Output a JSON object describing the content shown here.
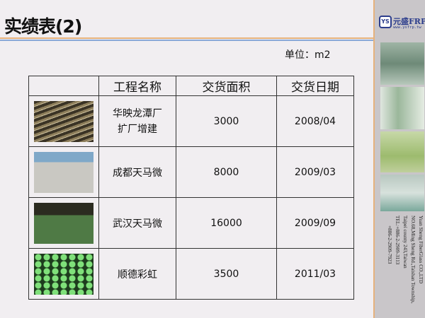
{
  "title": "实绩表(2)",
  "unit": "单位：m2",
  "logo": {
    "mark": "YS",
    "name": "元盛FRP",
    "url": "www.ysfrp.tw"
  },
  "company": {
    "lines": [
      "Yuan Sheng FiberGlass CO.,LTD",
      "NO.68,Ming Sheng Rd.,Taishan Township,",
      "Taipei county 243,Taiwan",
      "TEL:+886-2-2909-3113",
      "+886-2-2909-7923"
    ]
  },
  "table": {
    "headers": [
      "",
      "工程名称",
      "交货面积",
      "交货日期"
    ],
    "rows": [
      {
        "name": "华映龙潭厂\n扩厂增建",
        "area": "3000",
        "date": "2008/04"
      },
      {
        "name": "成都天马微",
        "area": "8000",
        "date": "2009/03"
      },
      {
        "name": "武汉天马微",
        "area": "16000",
        "date": "2009/09"
      },
      {
        "name": "顺德彩虹",
        "area": "3500",
        "date": "2011/03"
      }
    ]
  },
  "colors": {
    "accent_orange": "#e6b27c",
    "accent_blue": "#8aa9d8",
    "logo_blue": "#2c3d8c"
  }
}
